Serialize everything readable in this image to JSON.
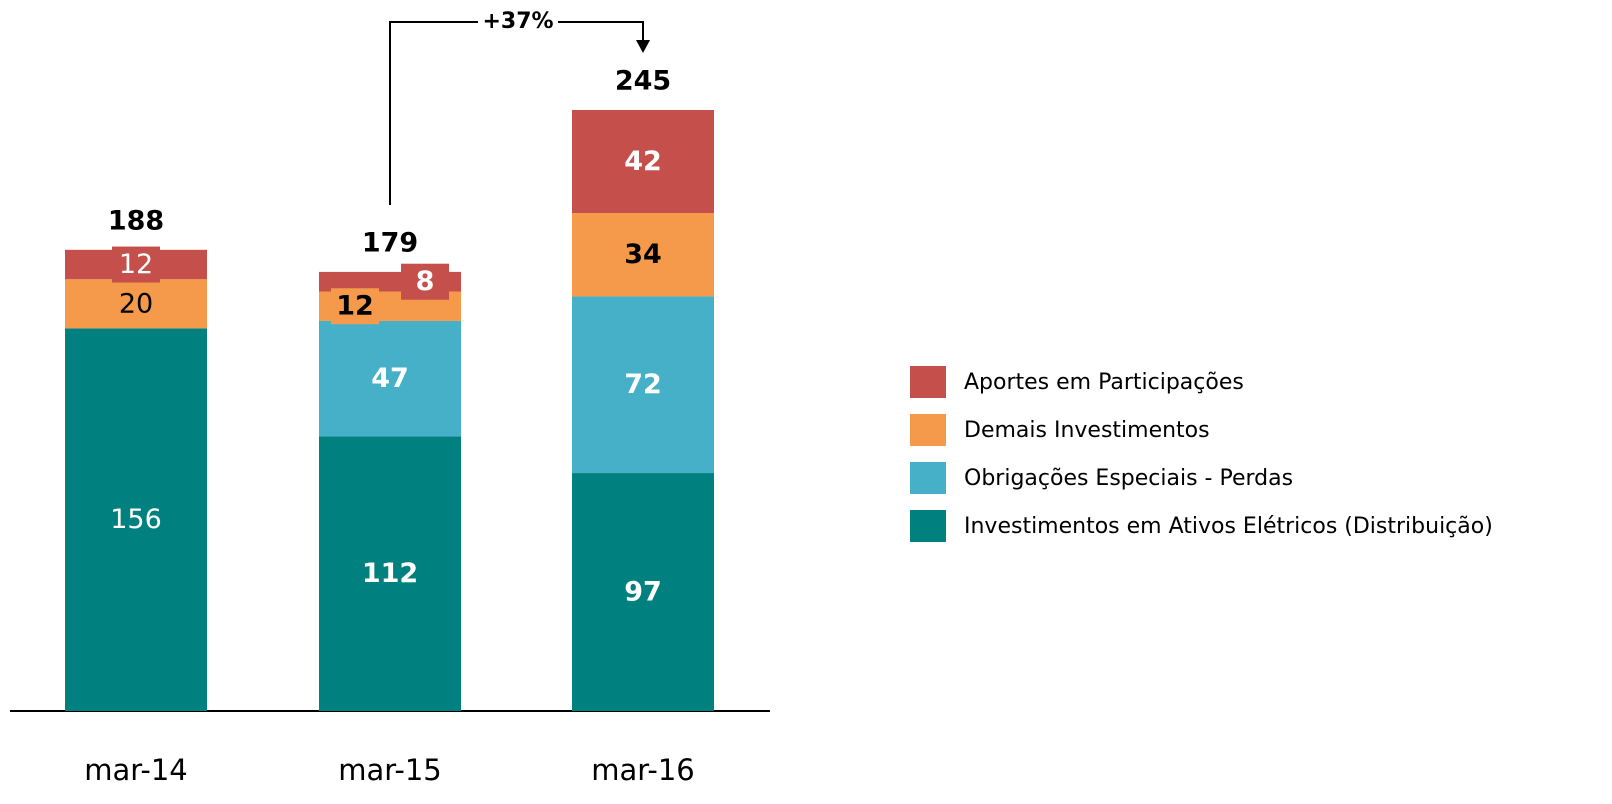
{
  "chart_data": {
    "type": "stacked_bar",
    "annotation": "+37%",
    "categories": [
      "mar-14",
      "mar-15",
      "mar-16"
    ],
    "series": [
      {
        "name": "Investimentos em Ativos Elétricos (Distribuição)",
        "color": "#00807f",
        "values": [
          156,
          112,
          97
        ]
      },
      {
        "name": "Obrigações Especiais - Perdas",
        "color": "#45b0c8",
        "values": [
          null,
          47,
          72
        ]
      },
      {
        "name": "Demais Investimentos",
        "color": "#f59a4a",
        "values": [
          20,
          12,
          34
        ]
      },
      {
        "name": "Aportes em Participações",
        "color": "#c5504b",
        "values": [
          12,
          8,
          42
        ]
      }
    ],
    "totals": [
      188,
      179,
      245
    ],
    "legend": "right"
  }
}
